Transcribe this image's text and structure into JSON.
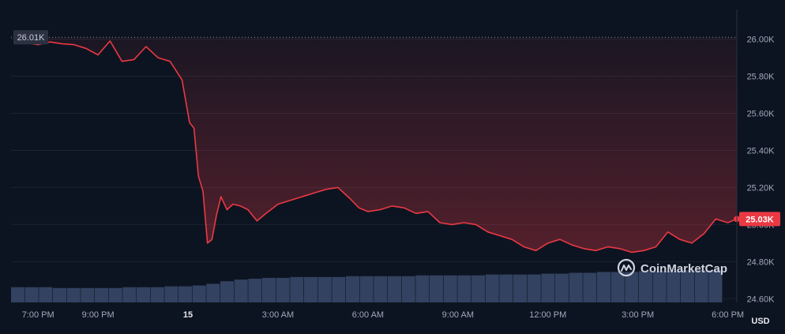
{
  "chart_data": {
    "type": "line",
    "currency_unit": "USD",
    "y_ticks": [
      "24.60K",
      "24.80K",
      "25.00K",
      "25.20K",
      "25.40K",
      "25.60K",
      "25.80K",
      "26.00K"
    ],
    "y_tick_values": [
      24600,
      24800,
      25000,
      25200,
      25400,
      25600,
      25800,
      26000
    ],
    "ylim": [
      24580,
      26160
    ],
    "x_ticks": [
      {
        "label": "7:00 PM",
        "value": 19,
        "bold": false
      },
      {
        "label": "9:00 PM",
        "value": 21,
        "bold": false
      },
      {
        "label": "15",
        "value": 24,
        "bold": true
      },
      {
        "label": "3:00 AM",
        "value": 27,
        "bold": false
      },
      {
        "label": "6:00 AM",
        "value": 30,
        "bold": false
      },
      {
        "label": "9:00 AM",
        "value": 33,
        "bold": false
      },
      {
        "label": "12:00 PM",
        "value": 36,
        "bold": false
      },
      {
        "label": "3:00 PM",
        "value": 39,
        "bold": false
      },
      {
        "label": "6:00 PM",
        "value": 42,
        "bold": false
      }
    ],
    "xlim": [
      18.1,
      42.3
    ],
    "high_label": "26.01K",
    "high_value": 26010,
    "current_label": "25.03K",
    "current_value": 25030,
    "line_color": "#ea3943",
    "badge_color": "#ea3943",
    "high_badge_color": "#2b3140",
    "volume_color": "#3a4a6b",
    "series": [
      {
        "x": [
          18.2,
          18.6,
          19.0,
          19.4,
          19.8,
          20.2,
          20.6,
          21.0,
          21.4,
          21.8,
          22.2,
          22.6,
          23.0,
          23.4,
          23.8,
          24.05,
          24.2,
          24.35,
          24.5,
          24.65,
          24.8,
          24.95,
          25.1,
          25.3,
          25.5,
          25.75,
          26.0,
          26.3,
          26.6,
          27.0,
          27.4,
          27.8,
          28.2,
          28.6,
          29.0,
          29.4,
          29.7,
          30.0,
          30.4,
          30.8,
          31.2,
          31.6,
          32.0,
          32.4,
          32.8,
          33.2,
          33.6,
          34.0,
          34.4,
          34.8,
          35.2,
          35.6,
          36.0,
          36.4,
          36.8,
          37.2,
          37.6,
          38.0,
          38.4,
          38.8,
          39.2,
          39.6,
          40.0,
          40.4,
          40.8,
          41.2,
          41.6,
          42.0,
          42.3
        ],
        "values": [
          25990,
          25980,
          25970,
          25985,
          25975,
          25970,
          25950,
          25915,
          25990,
          25880,
          25890,
          25960,
          25900,
          25880,
          25780,
          25550,
          25520,
          25260,
          25180,
          24900,
          24920,
          25050,
          25150,
          25080,
          25110,
          25100,
          25080,
          25020,
          25060,
          25110,
          25130,
          25150,
          25170,
          25190,
          25200,
          25140,
          25090,
          25070,
          25080,
          25100,
          25090,
          25060,
          25070,
          25010,
          25000,
          25010,
          25000,
          24960,
          24940,
          24920,
          24880,
          24860,
          24900,
          24920,
          24890,
          24870,
          24860,
          24880,
          24870,
          24850,
          24860,
          24880,
          24960,
          24920,
          24900,
          24950,
          25030,
          25010,
          25030
        ]
      }
    ],
    "volume": [
      18,
      18,
      18,
      17,
      17,
      17,
      17,
      17,
      18,
      18,
      18,
      19,
      19,
      20,
      22,
      25,
      27,
      28,
      29,
      29,
      30,
      30,
      30,
      30,
      31,
      31,
      31,
      31,
      31,
      32,
      32,
      32,
      32,
      32,
      33,
      33,
      33,
      33,
      34,
      34,
      35,
      35,
      36,
      36,
      36,
      37,
      37,
      37,
      38,
      38,
      38
    ]
  },
  "watermark": {
    "brand": "CoinMarketCap",
    "logo_icon": "coinmarketcap-logo-icon"
  }
}
